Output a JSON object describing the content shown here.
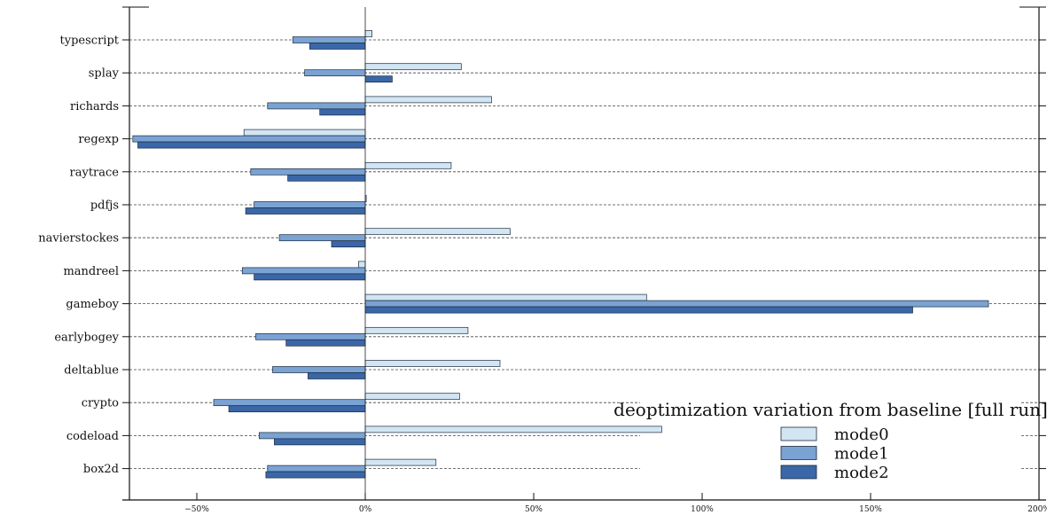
{
  "chart_data": {
    "type": "bar",
    "orientation": "horizontal",
    "title": "",
    "xlabel": "",
    "ylabel": "",
    "categories": [
      "box2d",
      "codeload",
      "crypto",
      "deltablue",
      "earlybogey",
      "gameboy",
      "mandreel",
      "navierstockes",
      "pdfjs",
      "raytrace",
      "regexp",
      "richards",
      "splay",
      "typescript"
    ],
    "series": [
      {
        "name": "mode0",
        "color": "#d2e5f3",
        "values": [
          21,
          88,
          28,
          40,
          30.5,
          83.5,
          -2,
          43,
          0.3,
          25.5,
          -36,
          37.5,
          28.5,
          2
        ]
      },
      {
        "name": "mode1",
        "color": "#7aa3d3",
        "values": [
          -29,
          -31.5,
          -45,
          -27.5,
          -32.5,
          185,
          -36.5,
          -25.5,
          -33,
          -34,
          -69,
          -29,
          -18,
          -21.5
        ]
      },
      {
        "name": "mode2",
        "color": "#3a67a8",
        "values": [
          -29.5,
          -27,
          -40.5,
          -17,
          -23.5,
          162.5,
          -33,
          -10,
          -35.5,
          -23,
          -67.5,
          -13.5,
          8,
          -16.5
        ]
      }
    ],
    "xlim": [
      -70,
      200
    ],
    "xticks": [
      -50,
      0,
      50,
      100,
      150,
      200
    ],
    "xtick_labels": [
      "−50%",
      "0%",
      "50%",
      "100%",
      "150%",
      "200%"
    ],
    "grid": "horizontal dashed",
    "legend": {
      "title": "deoptimization variation from baseline [full run]",
      "placement": "bottom-right",
      "entries": [
        "mode0",
        "mode1",
        "mode2"
      ]
    }
  }
}
